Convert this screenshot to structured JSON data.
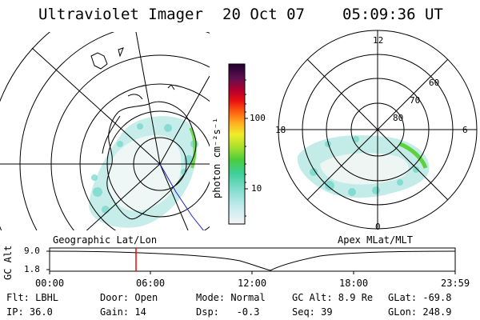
{
  "header": {
    "instrument": "Ultraviolet Imager",
    "date": "20 Oct 07",
    "time": "05:09:36 UT"
  },
  "colorbar": {
    "unit_label": "photon cm⁻²s⁻¹",
    "ticks": [
      "100",
      "10"
    ]
  },
  "geo_map": {
    "label": "Geographic Lat/Lon"
  },
  "apex_map": {
    "label": "Apex MLat/MLT",
    "mlt_labels": [
      "12",
      "18",
      "6",
      "0"
    ],
    "lat_labels": [
      "60",
      "70",
      "80"
    ]
  },
  "altitude_plot": {
    "axis_label": "GC Alt",
    "y_ticks": [
      "9.0",
      "1.8"
    ],
    "x_ticks": [
      "00:00",
      "06:00",
      "12:00",
      "18:00",
      "23:59"
    ],
    "current_time_marker_color": "#ff0000"
  },
  "status": {
    "filter": "Flt: LBHL",
    "door": "Door: Open",
    "mode": "Mode: Normal",
    "gc_alt": "GC Alt: 8.9 Re",
    "glat": "GLat: -69.8",
    "ip": "IP: 36.0",
    "gain": "Gain: 14",
    "dsp": "Dsp:   -0.3",
    "seq": "Seq: 39",
    "glon": "GLon: 248.9"
  }
}
